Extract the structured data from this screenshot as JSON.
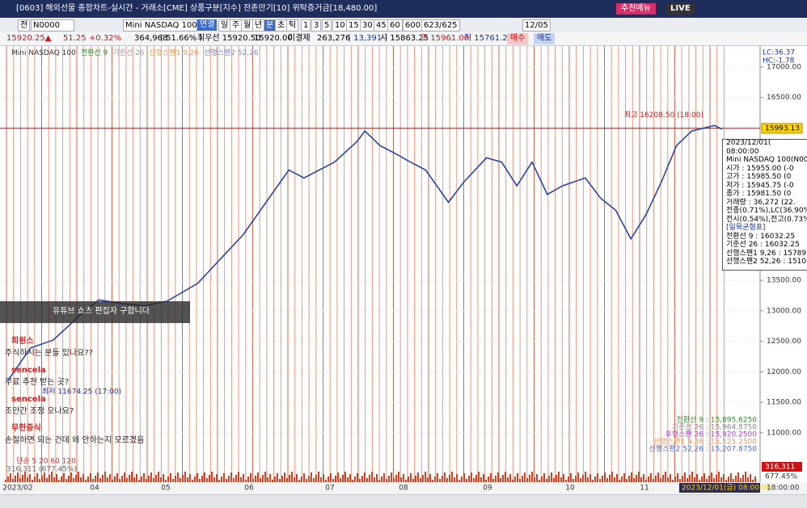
{
  "title_bar": {
    "title": "[0603] 해외선물 종합차트-실시간 - 거래소[CME] 상품구분[지수] 잔존만기[10] 위탁증거금[18,480.00]",
    "recommend": "추천메뉴",
    "live": "LIVE"
  },
  "toolbar": {
    "mode": "전",
    "code": "N0000",
    "name": "Mini NASDAQ 100",
    "link": "연결",
    "periods": [
      "일",
      "주",
      "월",
      "년",
      "분",
      "초",
      "틱"
    ],
    "intervals": [
      "1",
      "3",
      "5",
      "10",
      "15",
      "30",
      "45",
      "60"
    ],
    "interval_value": "600",
    "count": "623/625",
    "date": "12/05"
  },
  "quote": {
    "price": "15920.25▲",
    "change": "51.25",
    "rate": "+0.32%",
    "volume": "364,968",
    "volume_rate": "( 51.66% )",
    "best": "최우선 15920.50",
    "best2": "15920.00",
    "oi_label": "미결제",
    "oi": "263,276",
    "oi_change": "( 13,391 )",
    "open": "시 15863.25",
    "high": "고 15961.00",
    "low": "저 15761.25",
    "buy": "매수",
    "sell": "매도"
  },
  "chart_data": {
    "type": "line",
    "legend": [
      "전환선 9",
      "기준선 26",
      "선행스팬1 9,26",
      "선행스팬2 52,26"
    ],
    "lc": "LC:36.37",
    "hc": "HC:-1.78",
    "x": [
      1,
      4,
      7,
      11,
      13,
      16,
      19,
      22,
      26,
      29,
      32,
      35,
      38,
      40,
      44,
      47,
      48,
      50,
      52,
      54,
      56,
      59,
      61,
      64,
      66,
      68,
      70,
      72,
      74,
      77,
      79,
      81,
      83,
      85,
      87,
      89,
      91,
      94,
      95
    ],
    "series": [
      {
        "name": "Mini NASDAQ 100",
        "color": "#2346a8",
        "values": [
          11850,
          12390,
          12520,
          12980,
          13180,
          13120,
          13080,
          13160,
          13450,
          13850,
          14250,
          14780,
          15310,
          15180,
          15440,
          15780,
          15950,
          15710,
          15580,
          15440,
          15310,
          14780,
          15110,
          15510,
          15440,
          15050,
          15440,
          14910,
          15050,
          15180,
          14850,
          14650,
          14180,
          14580,
          15110,
          15710,
          15950,
          16040,
          15980
        ]
      }
    ],
    "xlim": [
      0,
      100
    ],
    "ylim": [
      10190,
      17330
    ],
    "yticks": [
      {
        "value": 11000,
        "label": "11000.00"
      },
      {
        "value": 11500,
        "label": "11500.00"
      },
      {
        "value": 12000,
        "label": "12000.00"
      },
      {
        "value": 12500,
        "label": "12500.00"
      },
      {
        "value": 13000,
        "label": "13000.00"
      },
      {
        "value": 13500,
        "label": "13500.00"
      },
      {
        "value": 16500,
        "label": "16500.00"
      },
      {
        "value": 17000,
        "label": "17000.00"
      }
    ],
    "x_labels": [
      "2023/02",
      "04",
      "05",
      "06",
      "07",
      "08",
      "09",
      "10",
      "11"
    ],
    "high_note": {
      "value": 16208.5,
      "label": "최고 16208.50 (18:00)"
    },
    "low_note": {
      "value": 11674.25,
      "label": "최저 11674.25 (17:00)"
    },
    "current_price": {
      "value": 15993.13,
      "label": "15993.13"
    },
    "cursor_time": "2023/12/01(금) 08:00:00",
    "end_time": "18:00:00",
    "volume_label": "316,311",
    "volume_rate": "677.45%",
    "ma_label": "단순 5 20 60 120",
    "volume_note": "316,311 (677.45%)",
    "ichimoku_values": [
      "전환선 9 : 15,895.6250",
      "기준선 26 : 15,964.8750",
      "후행스팬 26 : 15,920.2500",
      "선행스팬1 9,26 : 15,525.2500",
      "선행스팬2 52,26 : 15,207.8750"
    ]
  },
  "tooltip": [
    "2023/12/01(",
    "08:00:00",
    "Mini NASDAQ 100(N0000)",
    "시가    : 15955.00 (-0",
    "고가    : 15985.50 (0",
    "저가    : 15945.75 (-0",
    "종가    : 15981.50 (0",
    "거래량 : 36,272 (22.",
    "전종(0.71%),LC(36.90%)",
    "전시(0.54%),전고(0.73%",
    "[일목균형표]",
    "전환선 9 : 16032.25",
    "기준선 26 : 16032.25",
    "선행스팬1 9,26 : 15789",
    "선행스팬2 52,26 : 15108"
  ],
  "chat": {
    "banner": "유튜브 쇼츠 편집자 구합니다",
    "messages": [
      {
        "user": "희원스",
        "text": "주식하시는 분들 있나요??"
      },
      {
        "user": "sencela",
        "text": "무료 추천 받는 곳?"
      },
      {
        "user": "sencela",
        "text": "조만간 조정 오나요?"
      },
      {
        "user": "무한중식",
        "text": "손절하면 되는 건데 왜 안하는지 모르겠음"
      }
    ]
  }
}
